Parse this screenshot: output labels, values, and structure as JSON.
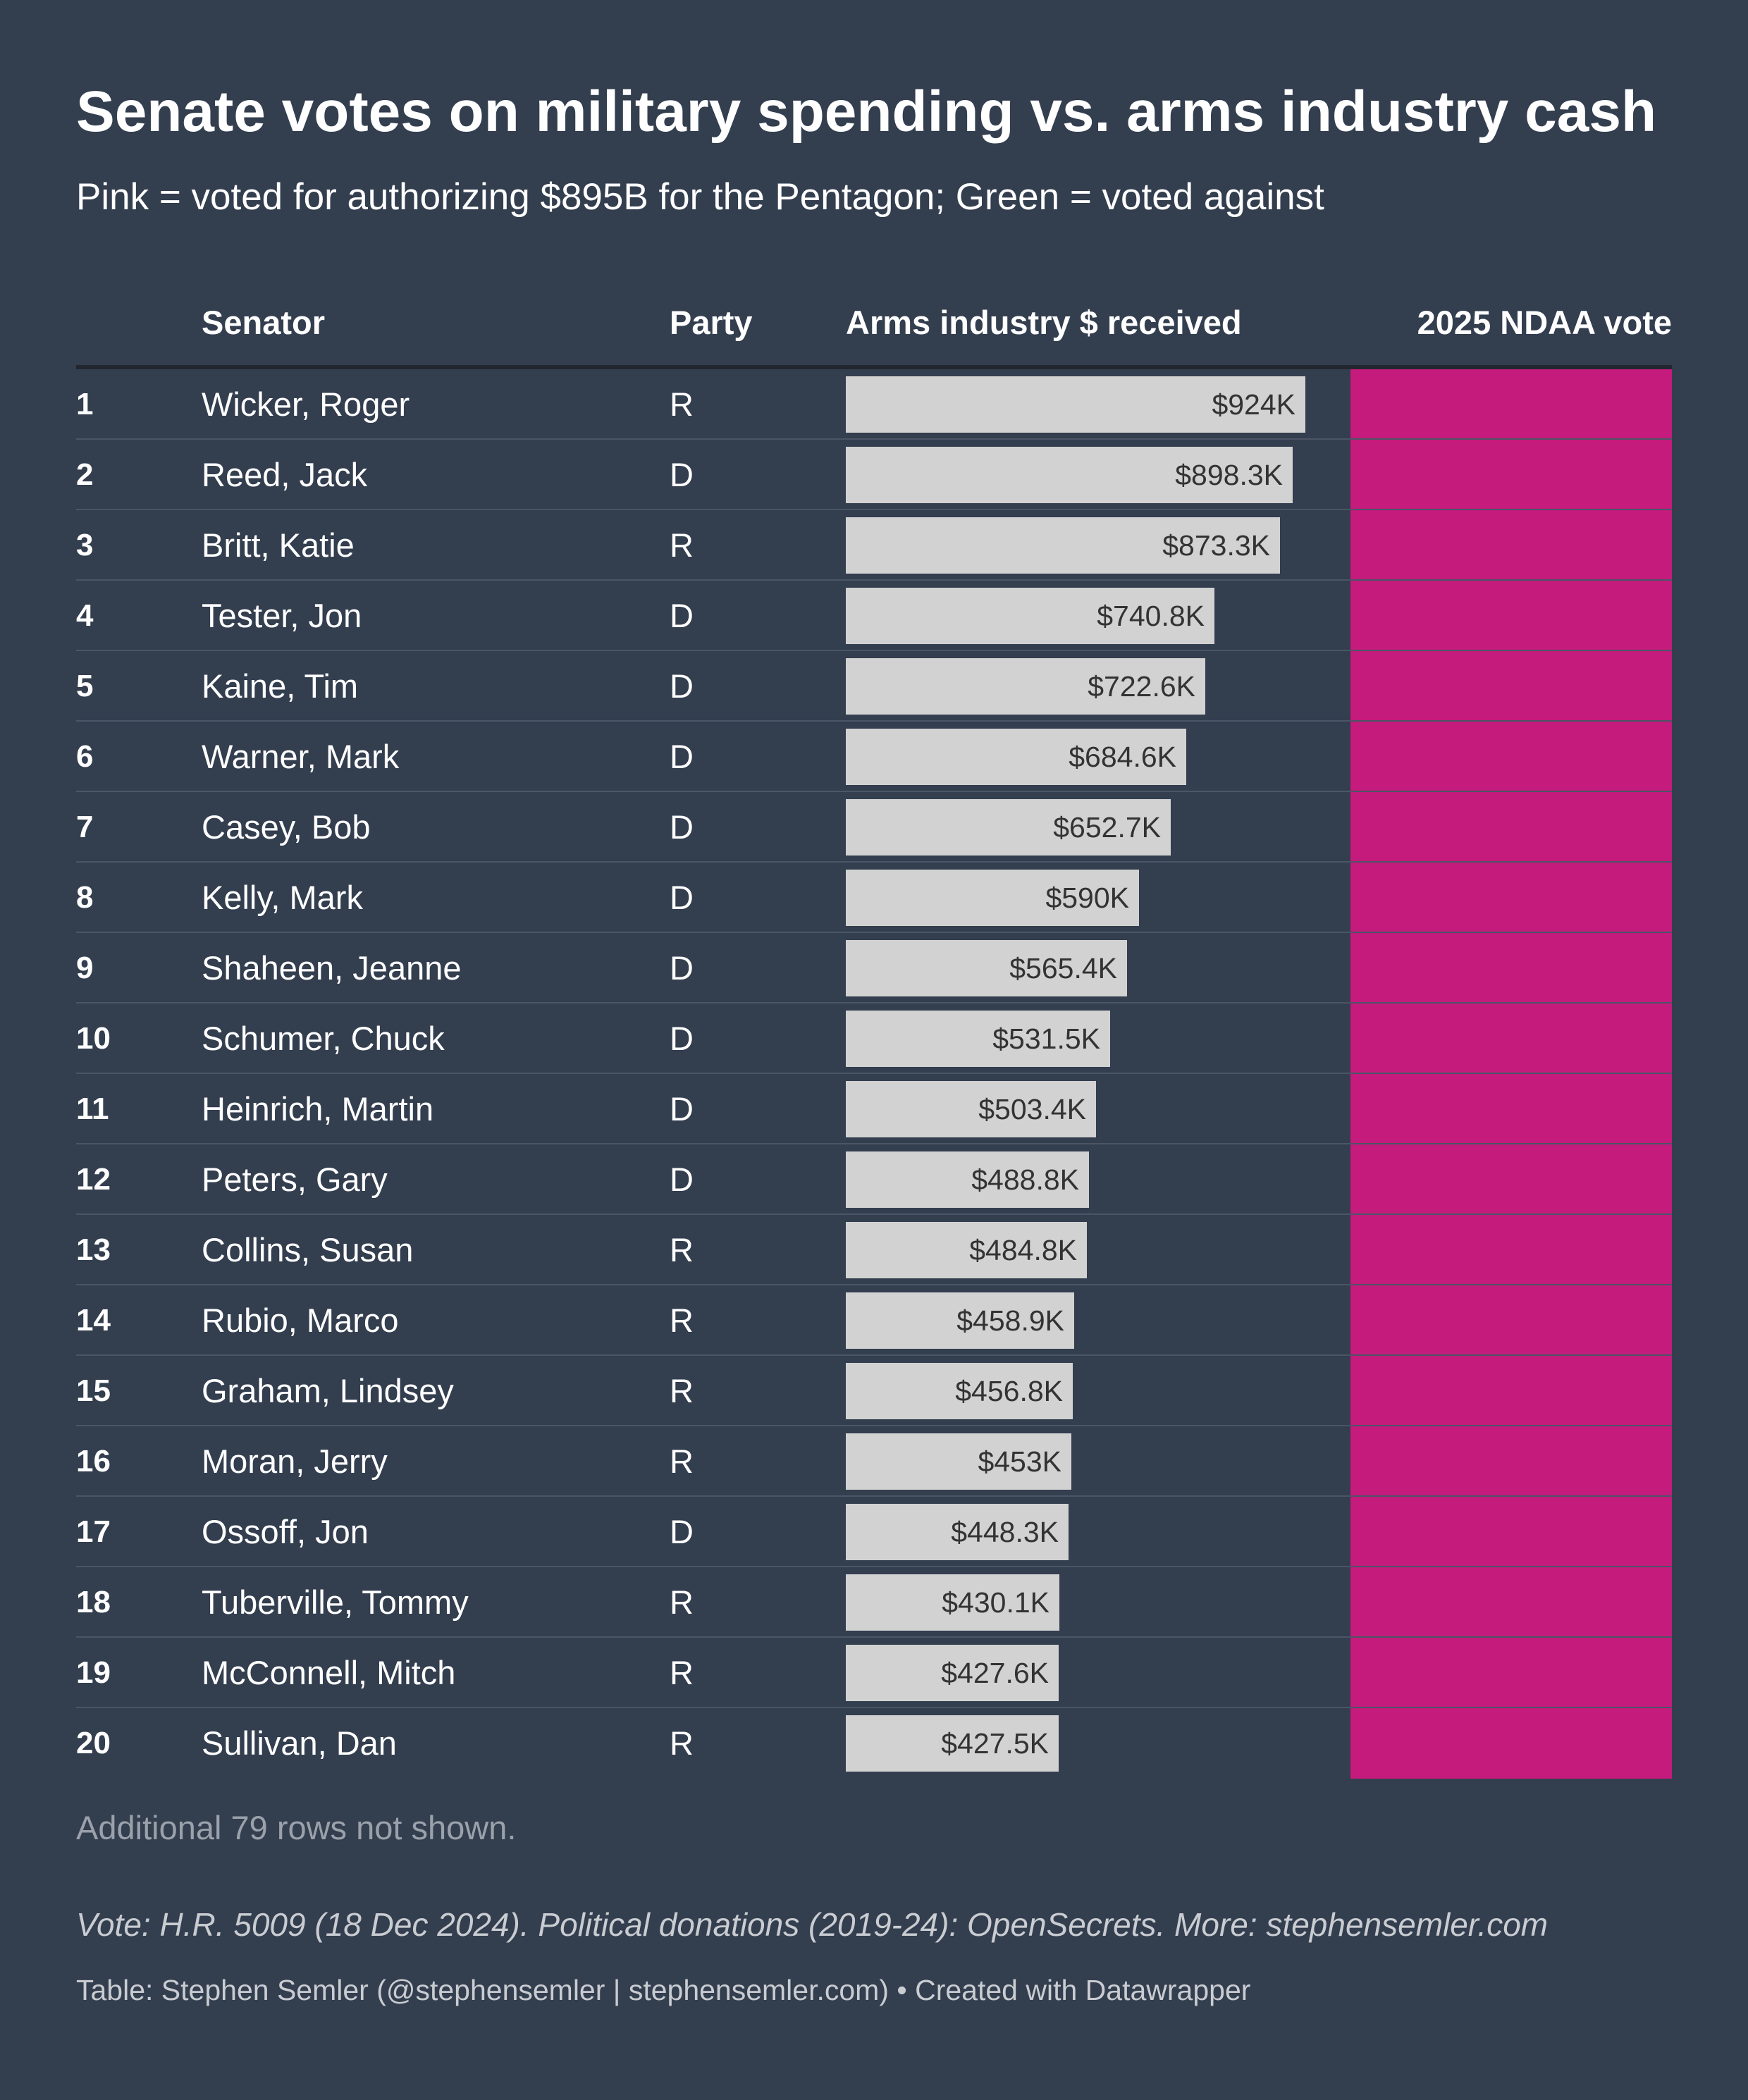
{
  "title": "Senate votes on military spending vs. arms industry cash",
  "subtitle": "Pink = voted for authorizing $895B for the Pentagon; Green = voted against",
  "columns": {
    "senator": "Senator",
    "party": "Party",
    "amount": "Arms industry $ received",
    "vote": "2025 NDAA vote"
  },
  "colors": {
    "background": "#333e4f",
    "bar": "#d2d2d2",
    "voted_for": "#c41b7c",
    "voted_against": "#2ea36b"
  },
  "chart_data": {
    "type": "table",
    "value_unit": "thousands USD",
    "rows": [
      {
        "rank": "1",
        "senator": "Wicker, Roger",
        "party": "R",
        "amount": 924,
        "label": "$924K",
        "vote": "for"
      },
      {
        "rank": "2",
        "senator": "Reed, Jack",
        "party": "D",
        "amount": 898.3,
        "label": "$898.3K",
        "vote": "for"
      },
      {
        "rank": "3",
        "senator": "Britt, Katie",
        "party": "R",
        "amount": 873.3,
        "label": "$873.3K",
        "vote": "for"
      },
      {
        "rank": "4",
        "senator": "Tester, Jon",
        "party": "D",
        "amount": 740.8,
        "label": "$740.8K",
        "vote": "for"
      },
      {
        "rank": "5",
        "senator": "Kaine, Tim",
        "party": "D",
        "amount": 722.6,
        "label": "$722.6K",
        "vote": "for"
      },
      {
        "rank": "6",
        "senator": "Warner, Mark",
        "party": "D",
        "amount": 684.6,
        "label": "$684.6K",
        "vote": "for"
      },
      {
        "rank": "7",
        "senator": "Casey, Bob",
        "party": "D",
        "amount": 652.7,
        "label": "$652.7K",
        "vote": "for"
      },
      {
        "rank": "8",
        "senator": "Kelly, Mark",
        "party": "D",
        "amount": 590,
        "label": "$590K",
        "vote": "for"
      },
      {
        "rank": "9",
        "senator": "Shaheen, Jeanne",
        "party": "D",
        "amount": 565.4,
        "label": "$565.4K",
        "vote": "for"
      },
      {
        "rank": "10",
        "senator": "Schumer, Chuck",
        "party": "D",
        "amount": 531.5,
        "label": "$531.5K",
        "vote": "for"
      },
      {
        "rank": "11",
        "senator": "Heinrich, Martin",
        "party": "D",
        "amount": 503.4,
        "label": "$503.4K",
        "vote": "for"
      },
      {
        "rank": "12",
        "senator": "Peters, Gary",
        "party": "D",
        "amount": 488.8,
        "label": "$488.8K",
        "vote": "for"
      },
      {
        "rank": "13",
        "senator": "Collins, Susan",
        "party": "R",
        "amount": 484.8,
        "label": "$484.8K",
        "vote": "for"
      },
      {
        "rank": "14",
        "senator": "Rubio, Marco",
        "party": "R",
        "amount": 458.9,
        "label": "$458.9K",
        "vote": "for"
      },
      {
        "rank": "15",
        "senator": "Graham, Lindsey",
        "party": "R",
        "amount": 456.8,
        "label": "$456.8K",
        "vote": "for"
      },
      {
        "rank": "16",
        "senator": "Moran, Jerry",
        "party": "R",
        "amount": 453,
        "label": "$453K",
        "vote": "for"
      },
      {
        "rank": "17",
        "senator": "Ossoff, Jon",
        "party": "D",
        "amount": 448.3,
        "label": "$448.3K",
        "vote": "for"
      },
      {
        "rank": "18",
        "senator": "Tuberville, Tommy",
        "party": "R",
        "amount": 430.1,
        "label": "$430.1K",
        "vote": "for"
      },
      {
        "rank": "19",
        "senator": "McConnell, Mitch",
        "party": "R",
        "amount": 427.6,
        "label": "$427.6K",
        "vote": "for"
      },
      {
        "rank": "20",
        "senator": "Sullivan, Dan",
        "party": "R",
        "amount": 427.5,
        "label": "$427.5K",
        "vote": "for"
      }
    ]
  },
  "footnote_rows": "Additional 79 rows not shown.",
  "source_note": "Vote: H.R. 5009 (18 Dec 2024). Political donations (2019-24): OpenSecrets. More: stephensemler.com",
  "credit": "Table: Stephen Semler (@stephensemler | stephensemler.com) • Created with Datawrapper"
}
